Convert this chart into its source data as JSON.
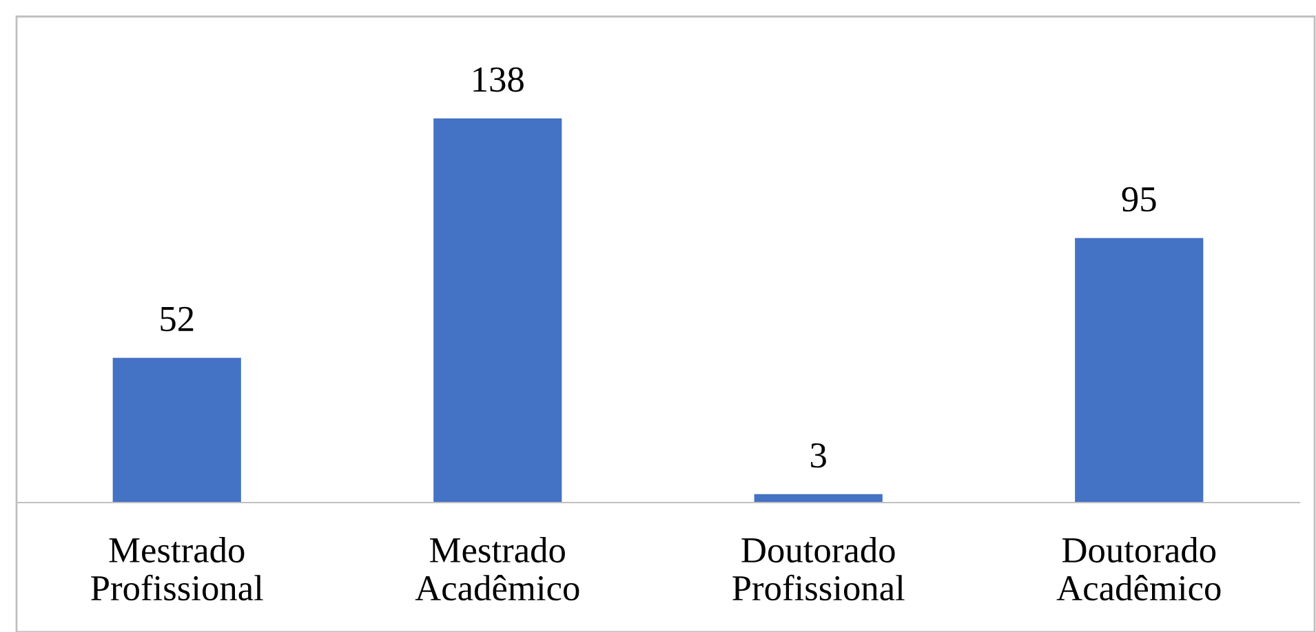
{
  "chart_data": {
    "type": "bar",
    "categories": [
      "Mestrado\nProfissional",
      "Mestrado\nAcadêmico",
      "Doutorado\nProfissional",
      "Doutorado\nAcadêmico"
    ],
    "values": [
      52,
      138,
      3,
      95
    ],
    "color": "#4472c4",
    "data_labels": true,
    "grid": false,
    "legend": false
  }
}
